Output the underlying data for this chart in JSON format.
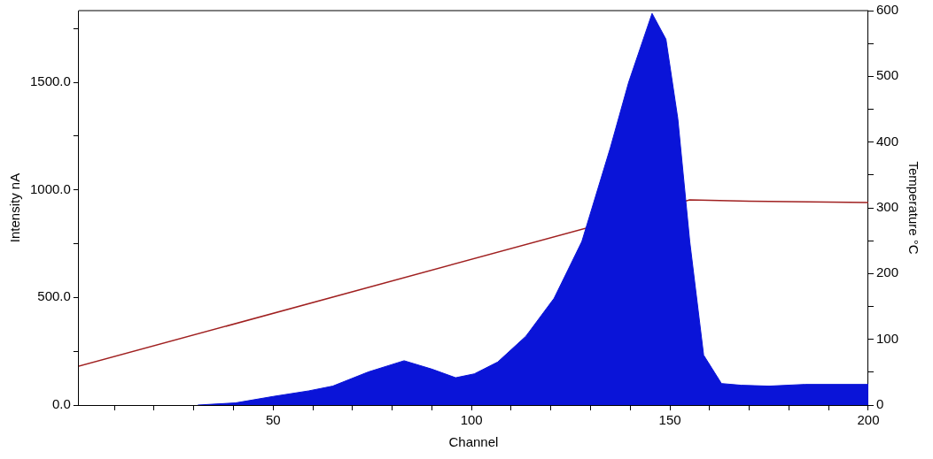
{
  "chart_data": {
    "type": "area",
    "xlabel": "Channel",
    "ylabel": "Intensity nA",
    "y2label": "Temperature °C",
    "xlim": [
      1,
      200
    ],
    "xticks": [
      {
        "value": 10,
        "label": null
      },
      {
        "value": 20,
        "label": null
      },
      {
        "value": 30,
        "label": null
      },
      {
        "value": 40,
        "label": null
      },
      50,
      {
        "value": 60,
        "label": null
      },
      {
        "value": 70,
        "label": null
      },
      {
        "value": 80,
        "label": null
      },
      {
        "value": 90,
        "label": null
      },
      100,
      {
        "value": 110,
        "label": null
      },
      {
        "value": 120,
        "label": null
      },
      {
        "value": 130,
        "label": null
      },
      {
        "value": 140,
        "label": null
      },
      150,
      {
        "value": 160,
        "label": null
      },
      {
        "value": 170,
        "label": null
      },
      {
        "value": 180,
        "label": null
      },
      {
        "value": 190,
        "label": null
      },
      200
    ],
    "ylim": [
      0,
      1833
    ],
    "yticks": [
      {
        "value": 0,
        "label": "0.0"
      },
      {
        "value": 250,
        "label": null
      },
      {
        "value": 500,
        "label": "500.0"
      },
      {
        "value": 750,
        "label": null
      },
      {
        "value": 1000,
        "label": "1000.0"
      },
      {
        "value": 1250,
        "label": null
      },
      {
        "value": 1500,
        "label": "1500.0"
      },
      {
        "value": 1750,
        "label": null
      }
    ],
    "y2lim": [
      0,
      600
    ],
    "y2ticks": [
      0,
      {
        "value": 50,
        "label": null
      },
      100,
      {
        "value": 150,
        "label": null
      },
      200,
      {
        "value": 250,
        "label": null
      },
      300,
      {
        "value": 350,
        "label": null
      },
      400,
      {
        "value": 450,
        "label": null
      },
      500,
      {
        "value": 550,
        "label": null
      },
      600
    ],
    "grid": false,
    "legend": false,
    "series": [
      {
        "color": "#0a14d8",
        "x": [
          31,
          40.5,
          50,
          59,
          65,
          74,
          83,
          90,
          96,
          100.7,
          106.6,
          113.7,
          120.8,
          127.8,
          135,
          139.6,
          145.5,
          149,
          152,
          155,
          158.5,
          163,
          168,
          175,
          184,
          200
        ],
        "values": [
          0,
          10,
          40,
          66,
          88,
          154,
          206,
          167,
          127,
          145,
          200,
          320,
          496,
          760,
          1197,
          1500,
          1820,
          1700,
          1330,
          760,
          232,
          100,
          92,
          88,
          96,
          96
        ]
      },
      {
        "type": "line",
        "axis": "y2",
        "color": "#a02020",
        "x": [
          1,
          155,
          170,
          200
        ],
        "values": [
          59,
          312,
          310,
          308
        ]
      }
    ]
  }
}
